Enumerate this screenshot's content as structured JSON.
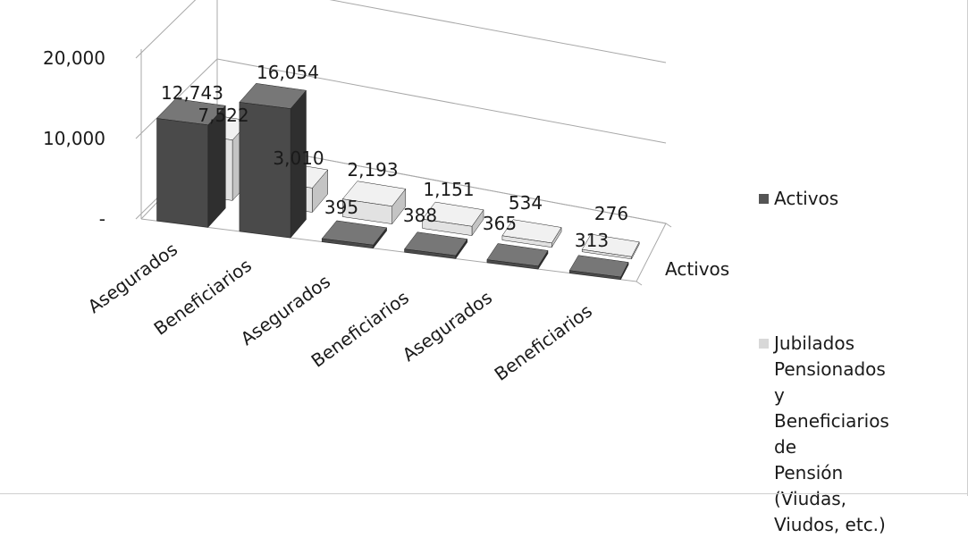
{
  "chart_data": {
    "type": "bar",
    "subtype": "3d-column",
    "categories": [
      "Asegurados",
      "Beneficiarios",
      "Asegurados",
      "Beneficiarios",
      "Asegurados",
      "Beneficiarios"
    ],
    "series": [
      {
        "name": "Activos",
        "values": [
          12743,
          16054,
          395,
          388,
          365,
          313
        ]
      },
      {
        "name": "Jubilados Pensionados y Beneficiarios de Pensión (Viudas, Viudos, etc.)",
        "values": [
          7522,
          3010,
          2193,
          1151,
          534,
          276
        ]
      }
    ],
    "value_labels": {
      "Activos": [
        "12,743",
        "16,054",
        "395",
        "388",
        "365",
        "313"
      ],
      "Jubilados": [
        "7,522",
        "3,010",
        "2,193",
        "1,151",
        "534",
        "276"
      ]
    },
    "depth_axis_label": "Activos",
    "yticks": [
      "20,000",
      "10,000",
      "-"
    ],
    "ytick_values": [
      20000,
      10000,
      0
    ],
    "ylim": [
      0,
      20000
    ],
    "grid": true,
    "legend_position": "right",
    "colors": {
      "Activos": "#4a4a4a",
      "Jubilados": "#dcdcdc"
    }
  },
  "legend": {
    "items": [
      {
        "label": "Activos",
        "color": "#555555"
      },
      {
        "label": "Jubilados\nPensionados y\nBeneficiarios de\nPensión (Viudas,\nViudos, etc.)",
        "color": "#d8d8d8"
      }
    ]
  }
}
